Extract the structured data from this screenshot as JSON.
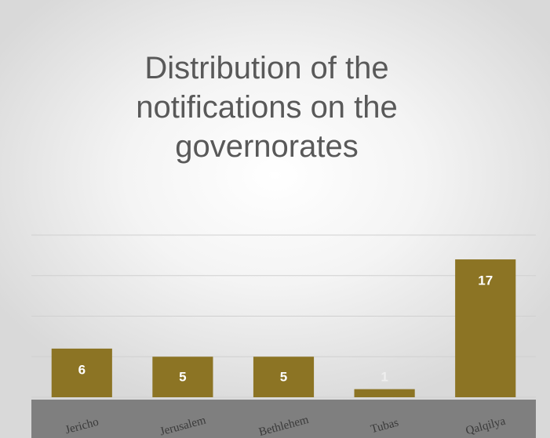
{
  "chart_data": {
    "type": "bar",
    "title": "Distribution of the notifications on the governorates",
    "categories": [
      "Jericho",
      "Jerusalem",
      "Bethlehem",
      "Tubas",
      "Qalqilya"
    ],
    "values": [
      6,
      5,
      5,
      1,
      17
    ],
    "color": "#8c7424",
    "ylim": [
      0,
      20
    ],
    "yticks": [
      0,
      5,
      10,
      15,
      20
    ],
    "grid": true
  }
}
